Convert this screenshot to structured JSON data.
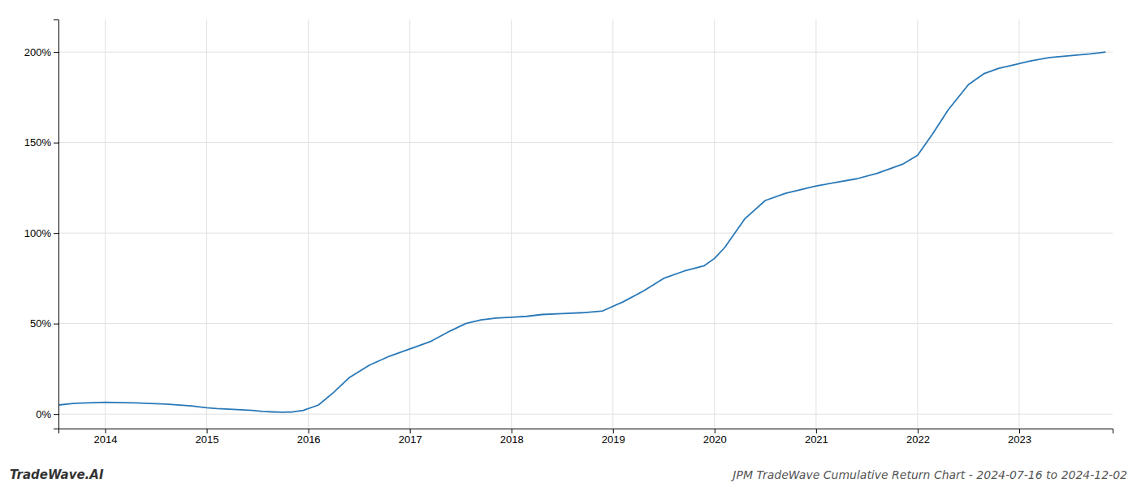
{
  "chart_data": {
    "type": "line",
    "title": "JPM TradeWave Cumulative Return Chart - 2024-07-16 to 2024-12-02",
    "annotations": [
      "TradeWave.AI"
    ],
    "x": [
      2013.54,
      2013.7,
      2014.0,
      2014.3,
      2014.6,
      2014.85,
      2015.0,
      2015.1,
      2015.3,
      2015.45,
      2015.55,
      2015.65,
      2015.75,
      2015.85,
      2015.95,
      2016.1,
      2016.25,
      2016.4,
      2016.6,
      2016.8,
      2017.0,
      2017.2,
      2017.4,
      2017.55,
      2017.7,
      2017.85,
      2018.0,
      2018.15,
      2018.3,
      2018.5,
      2018.7,
      2018.9,
      2019.1,
      2019.3,
      2019.5,
      2019.7,
      2019.9,
      2020.0,
      2020.1,
      2020.3,
      2020.5,
      2020.7,
      2020.85,
      2021.0,
      2021.2,
      2021.4,
      2021.6,
      2021.75,
      2021.85,
      2022.0,
      2022.15,
      2022.3,
      2022.5,
      2022.65,
      2022.8,
      2022.95,
      2023.1,
      2023.3,
      2023.5,
      2023.7,
      2023.85
    ],
    "values": [
      5,
      6,
      6.5,
      6.2,
      5.5,
      4.5,
      3.5,
      3.0,
      2.5,
      2.0,
      1.5,
      1.2,
      1.0,
      1.2,
      2.0,
      5,
      12,
      20,
      27,
      32,
      36,
      40,
      46,
      50,
      52,
      53,
      53.5,
      54,
      55,
      55.5,
      56,
      57,
      62,
      68,
      75,
      79,
      82,
      86,
      92,
      108,
      118,
      122,
      124,
      126,
      128,
      130,
      133,
      136,
      138,
      143,
      155,
      168,
      182,
      188,
      191,
      193,
      195,
      197,
      198,
      199,
      200
    ],
    "color": "#2878b8",
    "xlim": [
      2013.54,
      2023.92
    ],
    "xticks": [
      2014,
      2015,
      2016,
      2017,
      2018,
      2019,
      2020,
      2021,
      2022,
      2023
    ],
    "ylim": [
      -8,
      218
    ],
    "yticks": [
      {
        "value": 0,
        "label": "0%"
      },
      {
        "value": 50,
        "label": "50%"
      },
      {
        "value": 100,
        "label": "100%"
      },
      {
        "value": 150,
        "label": "150%"
      },
      {
        "value": 200,
        "label": "200%"
      }
    ],
    "grid": true
  }
}
